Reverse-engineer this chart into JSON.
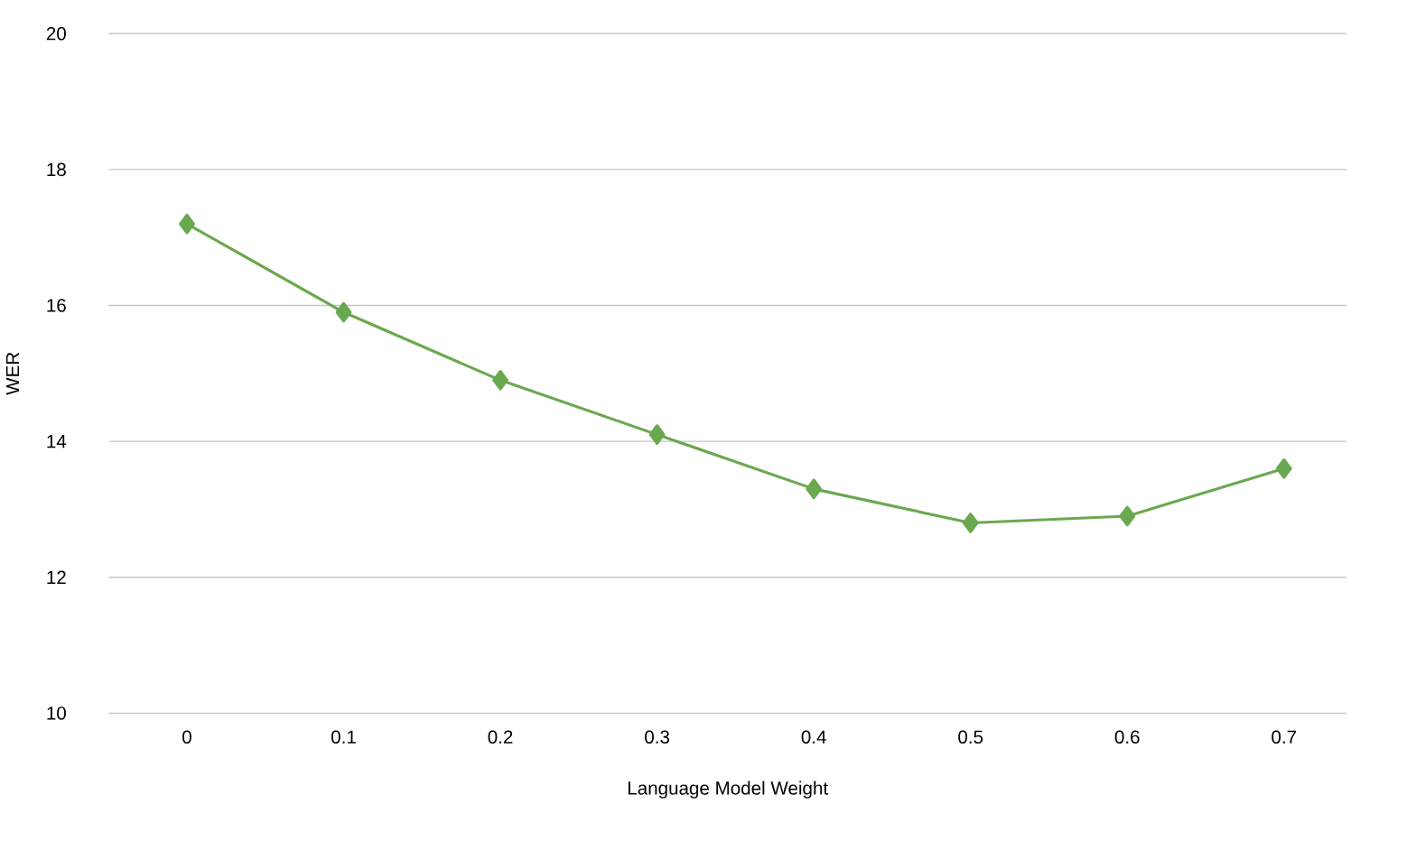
{
  "chart_data": {
    "type": "line",
    "xlabel": "Language Model Weight",
    "ylabel": "WER",
    "categories": [
      "0",
      "0.1",
      "0.2",
      "0.3",
      "0.4",
      "0.5",
      "0.6",
      "0.7"
    ],
    "values": [
      17.2,
      15.9,
      14.9,
      14.1,
      13.3,
      12.8,
      12.9,
      13.6
    ],
    "color": "#6aa84f",
    "marker": "diamond",
    "ylim": [
      10,
      20
    ],
    "yticks": [
      10,
      12,
      14,
      16,
      18,
      20
    ],
    "grid": "y"
  }
}
